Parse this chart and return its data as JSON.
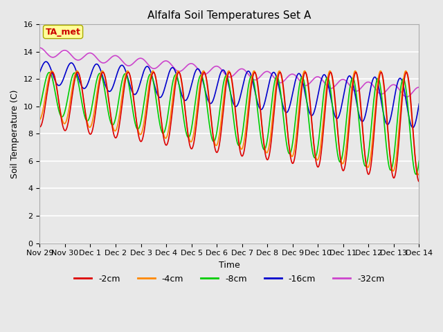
{
  "title": "Alfalfa Soil Temperatures Set A",
  "xlabel": "Time",
  "ylabel": "Soil Temperature (C)",
  "ylim": [
    0,
    16
  ],
  "yticks": [
    0,
    2,
    4,
    6,
    8,
    10,
    12,
    14,
    16
  ],
  "annotation_label": "TA_met",
  "annotation_color": "#cc0000",
  "annotation_bg": "#ffff99",
  "plot_bg": "#e8e8e8",
  "grid_color": "white",
  "series": {
    "-2cm": {
      "color": "#dd0000",
      "lw": 1.2
    },
    "-4cm": {
      "color": "#ff8800",
      "lw": 1.2
    },
    "-8cm": {
      "color": "#00cc00",
      "lw": 1.2
    },
    "-16cm": {
      "color": "#0000cc",
      "lw": 1.2
    },
    "-32cm": {
      "color": "#cc44cc",
      "lw": 1.2
    }
  },
  "legend_labels": [
    "-2cm",
    "-4cm",
    "-8cm",
    "-16cm",
    "-32cm"
  ],
  "legend_colors": [
    "#dd0000",
    "#ff8800",
    "#00cc00",
    "#0000cc",
    "#cc44cc"
  ],
  "x_tick_labels": [
    "Nov 29",
    "Nov 30",
    "Dec 1",
    "Dec 2",
    "Dec 3",
    "Dec 4",
    "Dec 5",
    "Dec 6",
    "Dec 7",
    "Dec 8",
    "Dec 9",
    "Dec 10",
    "Dec 11",
    "Dec 12",
    "Dec 13",
    "Dec 14"
  ],
  "title_fontsize": 11,
  "axis_fontsize": 9,
  "tick_fontsize": 8
}
